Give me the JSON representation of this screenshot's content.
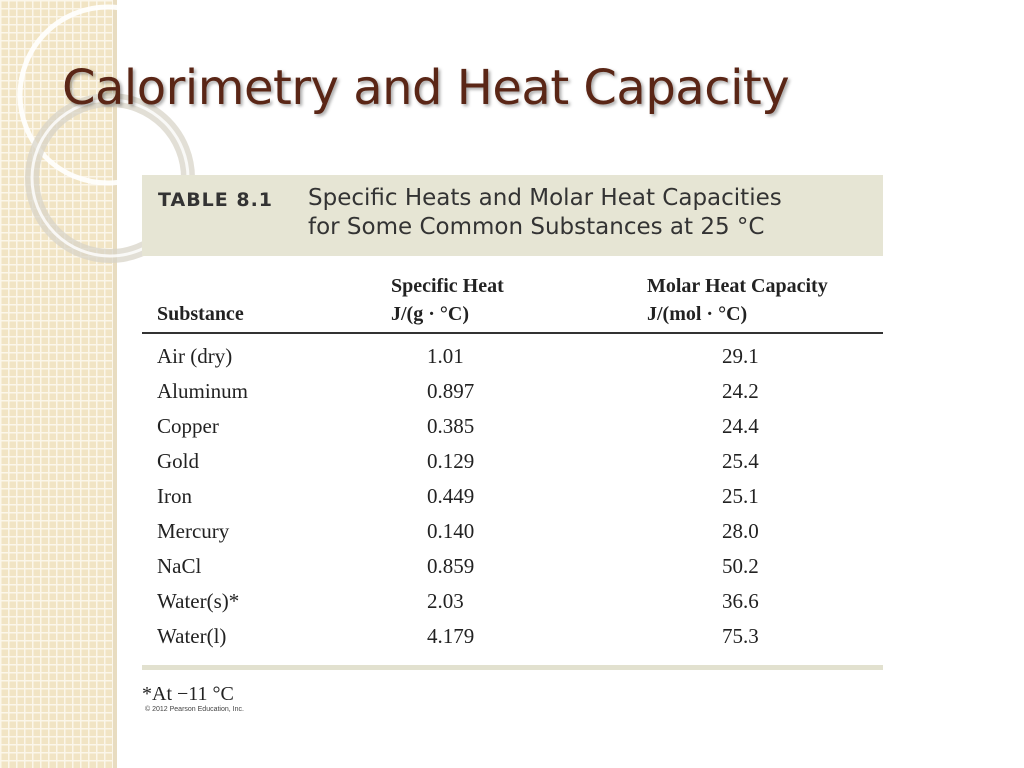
{
  "slide": {
    "title": "Calorimetry and Heat Capacity"
  },
  "table": {
    "number": "TABLE 8.1",
    "caption_line1": "Specific Heats and Molar Heat Capacities",
    "caption_line2": "for Some Common Substances at 25 °C",
    "headers": {
      "substance": "Substance",
      "specific_heat_line1": "Specific Heat",
      "specific_heat_line2": "J/(g · °C)",
      "molar_line1": "Molar Heat Capacity",
      "molar_line2": "J/(mol · °C)"
    },
    "rows": [
      {
        "substance": "Air (dry)",
        "specific_heat": "1.01",
        "molar": "29.1"
      },
      {
        "substance": "Aluminum",
        "specific_heat": "0.897",
        "molar": "24.2"
      },
      {
        "substance": "Copper",
        "specific_heat": "0.385",
        "molar": "24.4"
      },
      {
        "substance": "Gold",
        "specific_heat": "0.129",
        "molar": "25.4"
      },
      {
        "substance": "Iron",
        "specific_heat": "0.449",
        "molar": "25.1"
      },
      {
        "substance": "Mercury",
        "specific_heat": "0.140",
        "molar": "28.0"
      },
      {
        "substance": "NaCl",
        "specific_heat": "0.859",
        "molar": "50.2"
      },
      {
        "substance": "Water(s)*",
        "specific_heat": "2.03",
        "molar": "36.6"
      },
      {
        "substance": "Water(l)",
        "specific_heat": "4.179",
        "molar": "75.3"
      }
    ],
    "footnote": "*At −11 °C",
    "copyright": "© 2012 Pearson Education, Inc."
  },
  "colors": {
    "title": "#5a2616",
    "caption_band": "#e6e5d4",
    "side_strip": "#f1e4c4"
  }
}
